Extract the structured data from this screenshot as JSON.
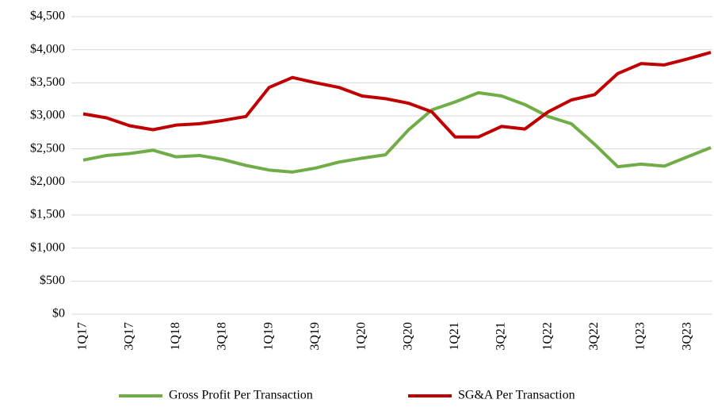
{
  "chart_data": {
    "type": "line",
    "categories": [
      "1Q17",
      null,
      "3Q17",
      null,
      "1Q18",
      null,
      "3Q18",
      null,
      "1Q19",
      null,
      "3Q19",
      null,
      "1Q20",
      null,
      "3Q20",
      null,
      "1Q21",
      null,
      "3Q21",
      null,
      "1Q22",
      null,
      "3Q22",
      null,
      "1Q23",
      null,
      "3Q23",
      null
    ],
    "series": [
      {
        "name": "Gross Profit Per Transaction",
        "color": "#70ad47",
        "values": [
          2330,
          2400,
          2430,
          2480,
          2380,
          2400,
          2340,
          2250,
          2180,
          2150,
          2210,
          2300,
          2360,
          2410,
          2790,
          3090,
          3210,
          3350,
          3300,
          3170,
          2990,
          2880,
          2570,
          2230,
          2270,
          2240,
          2380,
          2520
        ]
      },
      {
        "name": "SG&A Per Transaction",
        "color": "#c00000",
        "values": [
          3030,
          2970,
          2850,
          2790,
          2860,
          2880,
          2930,
          2990,
          3430,
          3580,
          3500,
          3430,
          3300,
          3260,
          3190,
          3060,
          2680,
          2680,
          2840,
          2800,
          3060,
          3240,
          3320,
          3640,
          3790,
          3770,
          3860,
          3960
        ]
      }
    ],
    "ylim": [
      0,
      4500
    ],
    "yticks": [
      {
        "value": 0,
        "label": "$0"
      },
      {
        "value": 500,
        "label": "$500"
      },
      {
        "value": 1000,
        "label": "$1,000"
      },
      {
        "value": 1500,
        "label": "$1,500"
      },
      {
        "value": 2000,
        "label": "$2,000"
      },
      {
        "value": 2500,
        "label": "$2,500"
      },
      {
        "value": 3000,
        "label": "$3,000"
      },
      {
        "value": 3500,
        "label": "$3,500"
      },
      {
        "value": 4000,
        "label": "$4,000"
      },
      {
        "value": 4500,
        "label": "$4,500"
      }
    ],
    "grid": true,
    "legend": "bottom"
  }
}
